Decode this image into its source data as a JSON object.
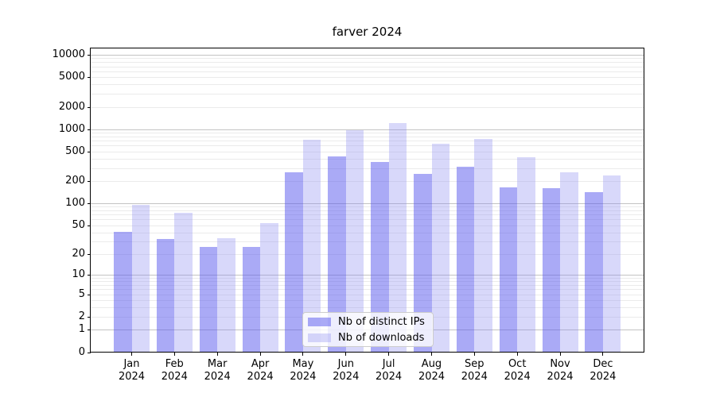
{
  "title": "farver 2024",
  "colors": {
    "background": "#ffffff",
    "axis": "#000000",
    "grid_major": "#c3c3c3",
    "grid_minor": "#ebebeb",
    "bar_distinct_ips": "rgba(92,92,238,0.52)",
    "bar_downloads": "rgba(140,140,240,0.34)",
    "legend_border": "#cccccc"
  },
  "legend": {
    "items": [
      {
        "label": "Nb of distinct IPs"
      },
      {
        "label": "Nb of downloads"
      }
    ]
  },
  "chart_data": {
    "type": "bar",
    "title": "farver 2024",
    "categories": [
      "Jan",
      "Feb",
      "Mar",
      "Apr",
      "May",
      "Jun",
      "Jul",
      "Aug",
      "Sep",
      "Oct",
      "Nov",
      "Dec"
    ],
    "year_label": "2024",
    "series": [
      {
        "name": "Nb of distinct IPs",
        "color": "rgba(92,92,238,0.52)",
        "values": [
          41,
          32,
          25,
          25,
          265,
          435,
          360,
          248,
          310,
          163,
          160,
          140
        ]
      },
      {
        "name": "Nb of downloads",
        "color": "rgba(140,140,240,0.34)",
        "values": [
          95,
          75,
          33,
          54,
          730,
          960,
          1200,
          635,
          735,
          415,
          260,
          235
        ]
      }
    ],
    "y_scale": "log1p",
    "y_ticks": [
      0,
      1,
      2,
      5,
      10,
      20,
      50,
      100,
      200,
      500,
      1000,
      2000,
      5000,
      10000
    ],
    "y_major_gridlines": [
      1,
      10,
      100,
      1000,
      10000
    ],
    "ylim": [
      0,
      10000
    ],
    "xlabel": "",
    "ylabel": "",
    "grid": "on",
    "legend_position": "lower center"
  }
}
